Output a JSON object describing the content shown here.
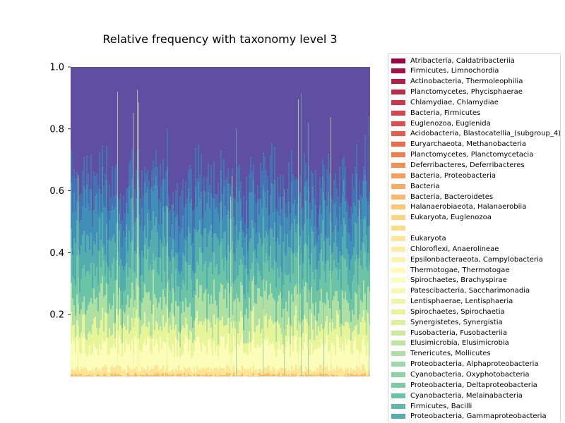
{
  "chart_data": {
    "type": "area",
    "stacked": true,
    "title": "Relative frequency with taxonomy level 3",
    "xlabel": "",
    "ylabel": "",
    "ylim": [
      0,
      1.0
    ],
    "y_ticks": [
      "0.2",
      "0.4",
      "0.6",
      "0.8",
      "1.0"
    ],
    "x_ticks_visible": false,
    "colormap": "Spectral",
    "legend_position": "outside-right",
    "series": [
      {
        "name": "Atribacteria, Caldatribacteriia",
        "color": "#9e0142"
      },
      {
        "name": "Firmicutes, Limnochordia",
        "color": "#a90f45"
      },
      {
        "name": "Actinobacteria, Thermoleophilia",
        "color": "#b41e48"
      },
      {
        "name": "Planctomycetes, Phycisphaerae",
        "color": "#c1274a"
      },
      {
        "name": "Chlamydiae, Chlamydiae",
        "color": "#cd354b"
      },
      {
        "name": "Bacteria, Firmicutes",
        "color": "#d8434e"
      },
      {
        "name": "Euglenozoa, Euglenida",
        "color": "#e04f4a"
      },
      {
        "name": "Acidobacteria, Blastocatellia_(subgroup_4)",
        "color": "#e75b49"
      },
      {
        "name": "Euryarchaeota, Methanobacteria",
        "color": "#ee6a45"
      },
      {
        "name": "Planctomycetes, Planctomycetacia",
        "color": "#f47d4c"
      },
      {
        "name": "Deferribacteres, Deferribacteres",
        "color": "#f68d52"
      },
      {
        "name": "Bacteria, Proteobacteria",
        "color": "#f99d59"
      },
      {
        "name": "Bacteria",
        "color": "#fbac64"
      },
      {
        "name": "Bacteria, Bacteroidetes",
        "color": "#fdba6d"
      },
      {
        "name": "Halanaerobiaeota, Halanaerobiia",
        "color": "#fdc776"
      },
      {
        "name": "Eukaryota, Euglenozoa",
        "color": "#fed481"
      },
      {
        "name": "",
        "color": "#fedc88"
      },
      {
        "name": "Eukaryota",
        "color": "#fee593"
      },
      {
        "name": "Chloroflexi, Anaerolineae",
        "color": "#feec9f"
      },
      {
        "name": "Epsilonbacteraeota, Campylobacteria",
        "color": "#fff3ab"
      },
      {
        "name": "Thermotogae, Thermotogae",
        "color": "#fffab6"
      },
      {
        "name": "Spirochaetes, Brachyspirae",
        "color": "#fbfdb8"
      },
      {
        "name": "Patescibacteria, Saccharimonadia",
        "color": "#f5faae"
      },
      {
        "name": "Lentisphaerae, Lentisphaeria",
        "color": "#eef8a4"
      },
      {
        "name": "Spirochaetes, Spirochaetia",
        "color": "#e6f598"
      },
      {
        "name": "Synergistetes, Synergistia",
        "color": "#dbf19a"
      },
      {
        "name": "Fusobacteria, Fusobacteriia",
        "color": "#cdeb9d"
      },
      {
        "name": "Elusimicrobia, Elusimicrobia",
        "color": "#bfe5a0"
      },
      {
        "name": "Tenericutes, Mollicutes",
        "color": "#aedfa3"
      },
      {
        "name": "Proteobacteria, Alphaproteobacteria",
        "color": "#9dd9a4"
      },
      {
        "name": "Cyanobacteria, Oxyphotobacteria",
        "color": "#8dd3a4"
      },
      {
        "name": "Proteobacteria, Deltaproteobacteria",
        "color": "#7ccba5"
      },
      {
        "name": "Cyanobacteria, Melainabacteria",
        "color": "#6bc4a5"
      },
      {
        "name": "Firmicutes, Bacilli",
        "color": "#5fb8a9"
      },
      {
        "name": "Proteobacteria, Gammaproteobacteria",
        "color": "#53acad"
      }
    ],
    "upper_series_colors": [
      "#4a9db3",
      "#3f8fb8",
      "#3c80b9",
      "#4472b3",
      "#4d64ac",
      "#5e4fa2"
    ]
  }
}
